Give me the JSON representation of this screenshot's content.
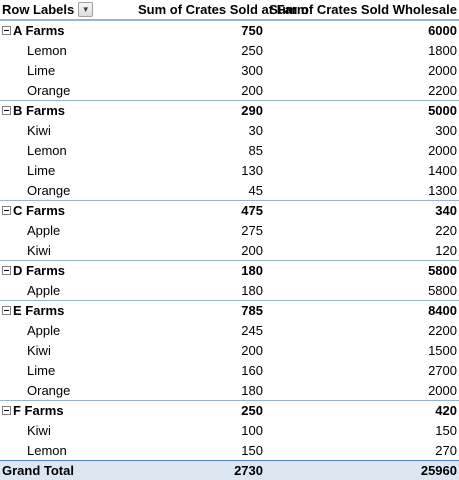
{
  "header": {
    "row_labels": "Row Labels",
    "col_farm": "Sum of Crates Sold at Farm",
    "col_wholesale": "Sum of Crates Sold Wholesale"
  },
  "groups": [
    {
      "name": "A Farms",
      "farm": "750",
      "wholesale": "6000",
      "items": [
        {
          "name": "Lemon",
          "farm": "250",
          "wholesale": "1800"
        },
        {
          "name": "Lime",
          "farm": "300",
          "wholesale": "2000"
        },
        {
          "name": "Orange",
          "farm": "200",
          "wholesale": "2200"
        }
      ]
    },
    {
      "name": "B Farms",
      "farm": "290",
      "wholesale": "5000",
      "items": [
        {
          "name": "Kiwi",
          "farm": "30",
          "wholesale": "300"
        },
        {
          "name": "Lemon",
          "farm": "85",
          "wholesale": "2000"
        },
        {
          "name": "Lime",
          "farm": "130",
          "wholesale": "1400"
        },
        {
          "name": "Orange",
          "farm": "45",
          "wholesale": "1300"
        }
      ]
    },
    {
      "name": "C Farms",
      "farm": "475",
      "wholesale": "340",
      "items": [
        {
          "name": "Apple",
          "farm": "275",
          "wholesale": "220"
        },
        {
          "name": "Kiwi",
          "farm": "200",
          "wholesale": "120"
        }
      ]
    },
    {
      "name": "D Farms",
      "farm": "180",
      "wholesale": "5800",
      "items": [
        {
          "name": "Apple",
          "farm": "180",
          "wholesale": "5800"
        }
      ]
    },
    {
      "name": "E Farms",
      "farm": "785",
      "wholesale": "8400",
      "items": [
        {
          "name": "Apple",
          "farm": "245",
          "wholesale": "2200"
        },
        {
          "name": "Kiwi",
          "farm": "200",
          "wholesale": "1500"
        },
        {
          "name": "Lime",
          "farm": "160",
          "wholesale": "2700"
        },
        {
          "name": "Orange",
          "farm": "180",
          "wholesale": "2000"
        }
      ]
    },
    {
      "name": "F Farms",
      "farm": "250",
      "wholesale": "420",
      "items": [
        {
          "name": "Kiwi",
          "farm": "100",
          "wholesale": "150"
        },
        {
          "name": "Lemon",
          "farm": "150",
          "wholesale": "270"
        }
      ]
    }
  ],
  "grand_total": {
    "label": "Grand Total",
    "farm": "2730",
    "wholesale": "25960"
  }
}
